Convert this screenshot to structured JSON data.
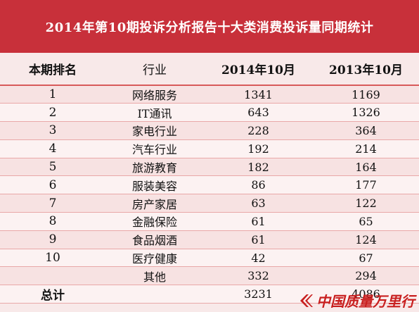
{
  "title": "2014年第10期投诉分析报告十大类消费投诉量同期统计",
  "headers": {
    "rank": "本期排名",
    "industry": "行业",
    "col_2014": "2014年10月",
    "col_2013": "2013年10月"
  },
  "rows": [
    {
      "rank": "1",
      "industry": "网络服务",
      "v2014": "1341",
      "v2013": "1169"
    },
    {
      "rank": "2",
      "industry": "IT通讯",
      "v2014": "643",
      "v2013": "1326"
    },
    {
      "rank": "3",
      "industry": "家电行业",
      "v2014": "228",
      "v2013": "364"
    },
    {
      "rank": "4",
      "industry": "汽车行业",
      "v2014": "192",
      "v2013": "214"
    },
    {
      "rank": "5",
      "industry": "旅游教育",
      "v2014": "182",
      "v2013": "164"
    },
    {
      "rank": "6",
      "industry": "服装美容",
      "v2014": "86",
      "v2013": "177"
    },
    {
      "rank": "7",
      "industry": "房产家居",
      "v2014": "63",
      "v2013": "122"
    },
    {
      "rank": "8",
      "industry": "金融保险",
      "v2014": "61",
      "v2013": "65"
    },
    {
      "rank": "9",
      "industry": "食品烟酒",
      "v2014": "61",
      "v2013": "124"
    },
    {
      "rank": "10",
      "industry": "医疗健康",
      "v2014": "42",
      "v2013": "67"
    },
    {
      "rank": "",
      "industry": "其他",
      "v2014": "332",
      "v2013": "294"
    }
  ],
  "total": {
    "label": "总计",
    "v2014": "3231",
    "v2013": "4086"
  },
  "watermark": {
    "text": "中国质量万里行"
  },
  "colors": {
    "title_bg": "#c8303a",
    "accent": "#d85a5a",
    "row_odd": "#f7e2e2",
    "row_even": "#fcf2f2"
  },
  "chart_data": {
    "type": "table",
    "title": "2014年第10期投诉分析报告十大类消费投诉量同期统计",
    "columns": [
      "本期排名",
      "行业",
      "2014年10月",
      "2013年10月"
    ],
    "rows": [
      [
        "1",
        "网络服务",
        1341,
        1169
      ],
      [
        "2",
        "IT通讯",
        643,
        1326
      ],
      [
        "3",
        "家电行业",
        228,
        364
      ],
      [
        "4",
        "汽车行业",
        192,
        214
      ],
      [
        "5",
        "旅游教育",
        182,
        164
      ],
      [
        "6",
        "服装美容",
        86,
        177
      ],
      [
        "7",
        "房产家居",
        63,
        122
      ],
      [
        "8",
        "金融保险",
        61,
        65
      ],
      [
        "9",
        "食品烟酒",
        61,
        124
      ],
      [
        "10",
        "医疗健康",
        42,
        67
      ],
      [
        "",
        "其他",
        332,
        294
      ],
      [
        "总计",
        "",
        3231,
        4086
      ]
    ]
  }
}
